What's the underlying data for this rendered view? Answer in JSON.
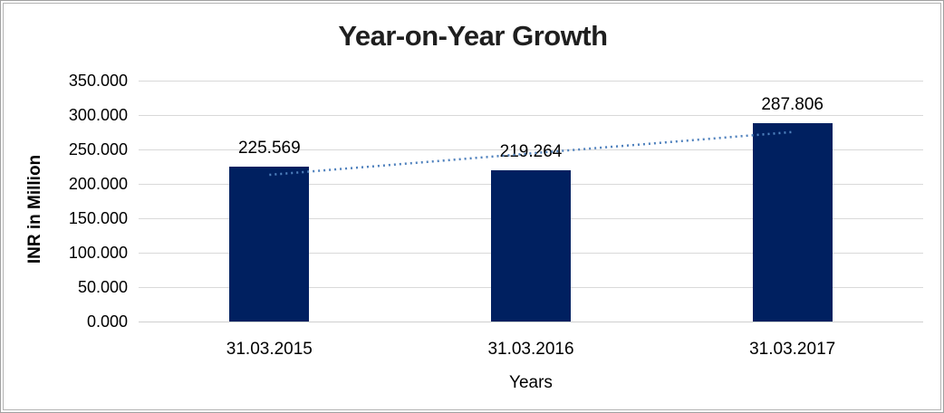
{
  "frame": {
    "outer_border_color": "#a0a0a0",
    "inner_border_color": "#b3b3b3",
    "background": "#ffffff"
  },
  "chart_data": {
    "type": "bar",
    "title": "Year-on-Year Growth",
    "title_color": "#1f1f1f",
    "xlabel": "Years",
    "ylabel": "INR in Million",
    "categories": [
      "31.03.2015",
      "31.03.2016",
      "31.03.2017"
    ],
    "series": [
      {
        "name": "INR in Million",
        "values": [
          225.569,
          219.264,
          287.806
        ]
      }
    ],
    "data_labels": [
      "225.569",
      "219.264",
      "287.806"
    ],
    "ylim": [
      0,
      350
    ],
    "ytick_step": 50,
    "ytick_labels": [
      "350.000",
      "300.000",
      "250.000",
      "200.000",
      "150.000",
      "100.000",
      "50.000",
      "0.000"
    ],
    "grid": true,
    "legend_position": "none",
    "bar_color": "#002060",
    "gridline_color": "#d9d9d9",
    "baseline_color": "#cfcfcf",
    "text_color": "#000000",
    "trendline": {
      "type": "linear",
      "style": "dotted",
      "color": "#4f81bd"
    }
  }
}
